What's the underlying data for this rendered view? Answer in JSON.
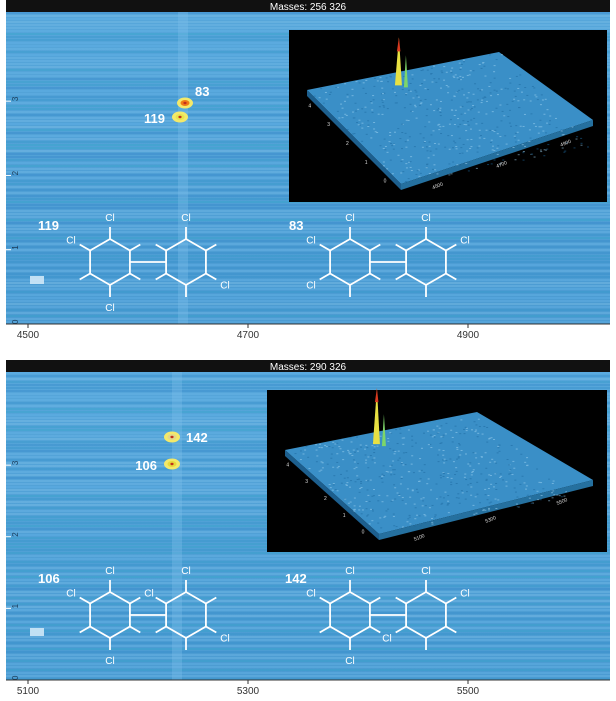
{
  "chart_data": [
    {
      "type": "heatmap",
      "title": "Masses:  256 326",
      "x_ticks": [
        "4500",
        "4700",
        "4900"
      ],
      "x_tick_values": [
        4500,
        4700,
        4900
      ],
      "xlim": [
        4500,
        5000
      ],
      "y_ticks": [
        "0",
        "1",
        "2",
        "3"
      ],
      "y_tick_values": [
        0,
        1,
        2,
        3
      ],
      "ylim": [
        0,
        4.2
      ],
      "spots": [
        {
          "label": "83",
          "x": 4636,
          "y": 2.95,
          "color": "#f07a17"
        },
        {
          "label": "119",
          "x": 4636,
          "y": 2.75,
          "color": "#e9e34a"
        }
      ],
      "inset": {
        "type": "surface-3d",
        "axis_ticks_a": [
          "4500",
          "4700",
          "4900"
        ],
        "axis_ticks_b": [
          "0",
          "1",
          "2",
          "3",
          "4"
        ]
      },
      "structures": [
        {
          "compound": "119",
          "substituents": [
            "Cl",
            "Cl",
            "Cl",
            "Cl",
            "Cl"
          ]
        },
        {
          "compound": "83",
          "substituents": [
            "Cl",
            "Cl",
            "Cl",
            "Cl",
            "Cl"
          ]
        }
      ]
    },
    {
      "type": "heatmap",
      "title": "Masses:  290 326",
      "x_ticks": [
        "5100",
        "5300",
        "5500"
      ],
      "x_tick_values": [
        5100,
        5300,
        5500
      ],
      "xlim": [
        5100,
        5600
      ],
      "y_ticks": [
        "0",
        "1",
        "2",
        "3"
      ],
      "y_tick_values": [
        0,
        1,
        2,
        3
      ],
      "ylim": [
        0,
        4.3
      ],
      "spots": [
        {
          "label": "142",
          "x": 5222,
          "y": 3.15,
          "color": "#e2d88a"
        },
        {
          "label": "106",
          "x": 5222,
          "y": 2.8,
          "color": "#e7d93a"
        }
      ],
      "inset": {
        "type": "surface-3d",
        "axis_ticks_a": [
          "5100",
          "5300",
          "5500"
        ],
        "axis_ticks_b": [
          "0",
          "1",
          "2",
          "3",
          "4"
        ]
      },
      "structures": [
        {
          "compound": "106",
          "substituents": [
            "Cl",
            "Cl",
            "Cl",
            "Cl",
            "Cl",
            "Cl"
          ]
        },
        {
          "compound": "142",
          "substituents": [
            "Cl",
            "Cl",
            "Cl",
            "Cl",
            "Cl",
            "Cl"
          ]
        }
      ]
    }
  ],
  "colors": {
    "background_blue": "#4d9fd6",
    "frame": "#111111",
    "surface": "#3a8fc7",
    "structure_line": "#ffffff"
  }
}
